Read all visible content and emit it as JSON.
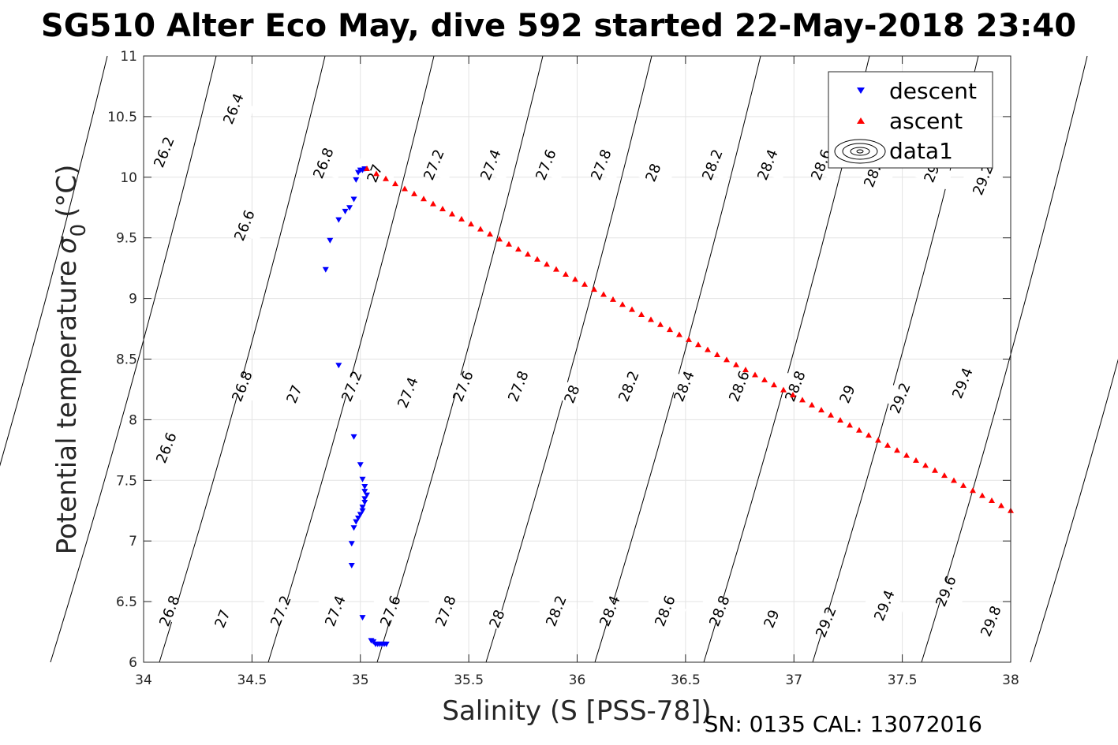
{
  "title": "SG510 Alter Eco May, dive 592 started 22-May-2018 23:40",
  "footer": "SN: 0135  CAL: 13072016",
  "colors": {
    "descent": "#0000ff",
    "ascent": "#ff0000",
    "contour": "#000000",
    "grid": "#e3e3e3",
    "axis": "#262626"
  },
  "chart_data": {
    "type": "scatter",
    "xlabel": "Salinity (S [PSS-78])",
    "ylabel_main": "Potential temperature",
    "ylabel_symbol": "σ",
    "ylabel_subscript": "0",
    "ylabel_unit": "(°C)",
    "xlim": [
      34,
      38
    ],
    "ylim": [
      6,
      11
    ],
    "x_ticks": [
      34,
      34.5,
      35,
      35.5,
      36,
      36.5,
      37,
      37.5,
      38
    ],
    "x_tick_labels": [
      "34",
      "34.5",
      "35",
      "35.5",
      "36",
      "36.5",
      "37",
      "37.5",
      "38"
    ],
    "y_ticks": [
      6,
      6.5,
      7,
      7.5,
      8,
      8.5,
      9,
      9.5,
      10,
      10.5,
      11
    ],
    "y_tick_labels": [
      "6",
      "6.5",
      "7",
      "7.5",
      "8",
      "8.5",
      "9",
      "9.5",
      "10",
      "10.5",
      "11"
    ],
    "grid": true,
    "legend_position": "top-right",
    "legend": [
      "descent",
      "ascent",
      "data1"
    ],
    "series": [
      {
        "name": "descent",
        "marker": "down-triangle",
        "color": "#0000ff",
        "points": [
          [
            35.0,
            10.06
          ],
          [
            35.01,
            10.06
          ],
          [
            35.02,
            10.07
          ],
          [
            34.99,
            10.04
          ],
          [
            34.98,
            9.98
          ],
          [
            34.97,
            9.82
          ],
          [
            34.95,
            9.75
          ],
          [
            34.93,
            9.72
          ],
          [
            34.9,
            9.65
          ],
          [
            34.86,
            9.48
          ],
          [
            34.84,
            9.24
          ],
          [
            34.9,
            8.45
          ],
          [
            34.97,
            7.86
          ],
          [
            35.0,
            7.63
          ],
          [
            35.01,
            7.51
          ],
          [
            35.02,
            7.45
          ],
          [
            35.02,
            7.41
          ],
          [
            35.03,
            7.38
          ],
          [
            35.02,
            7.35
          ],
          [
            35.02,
            7.32
          ],
          [
            35.01,
            7.28
          ],
          [
            35.01,
            7.25
          ],
          [
            35.0,
            7.22
          ],
          [
            34.99,
            7.19
          ],
          [
            34.98,
            7.16
          ],
          [
            34.97,
            7.11
          ],
          [
            34.96,
            6.98
          ],
          [
            34.96,
            6.8
          ],
          [
            35.01,
            6.37
          ],
          [
            35.05,
            6.18
          ],
          [
            35.06,
            6.17
          ],
          [
            35.07,
            6.15
          ],
          [
            35.08,
            6.15
          ],
          [
            35.09,
            6.15
          ],
          [
            35.1,
            6.15
          ],
          [
            35.11,
            6.15
          ],
          [
            35.12,
            6.15
          ]
        ]
      },
      {
        "name": "ascent",
        "marker": "up-triangle",
        "color": "#ff0000",
        "start": [
          35.03,
          10.07
        ],
        "end": [
          38.0,
          7.25
        ],
        "count": 69
      }
    ],
    "isopycnal_labels": {
      "note": "sigma-0 contour labels as printed",
      "top_row": [
        "26.2",
        "26.4",
        "26.8",
        "27",
        "27.2",
        "27.4",
        "27.6",
        "27.8",
        "28",
        "28.2",
        "28.4",
        "28.6",
        "28.8",
        "29",
        "29.2"
      ],
      "middle_row": [
        "26.6",
        "26.6",
        "26.8",
        "27",
        "27.2",
        "27.4",
        "27.6",
        "27.8",
        "28",
        "28.2",
        "28.4",
        "28.6",
        "28.8",
        "29",
        "29.2",
        "29.4"
      ],
      "bottom_row": [
        "26.8",
        "27",
        "27.2",
        "27.4",
        "27.6",
        "27.8",
        "28",
        "28.2",
        "28.4",
        "28.6",
        "28.8",
        "29",
        "29.2",
        "29.4",
        "29.6",
        "29.8"
      ]
    }
  }
}
